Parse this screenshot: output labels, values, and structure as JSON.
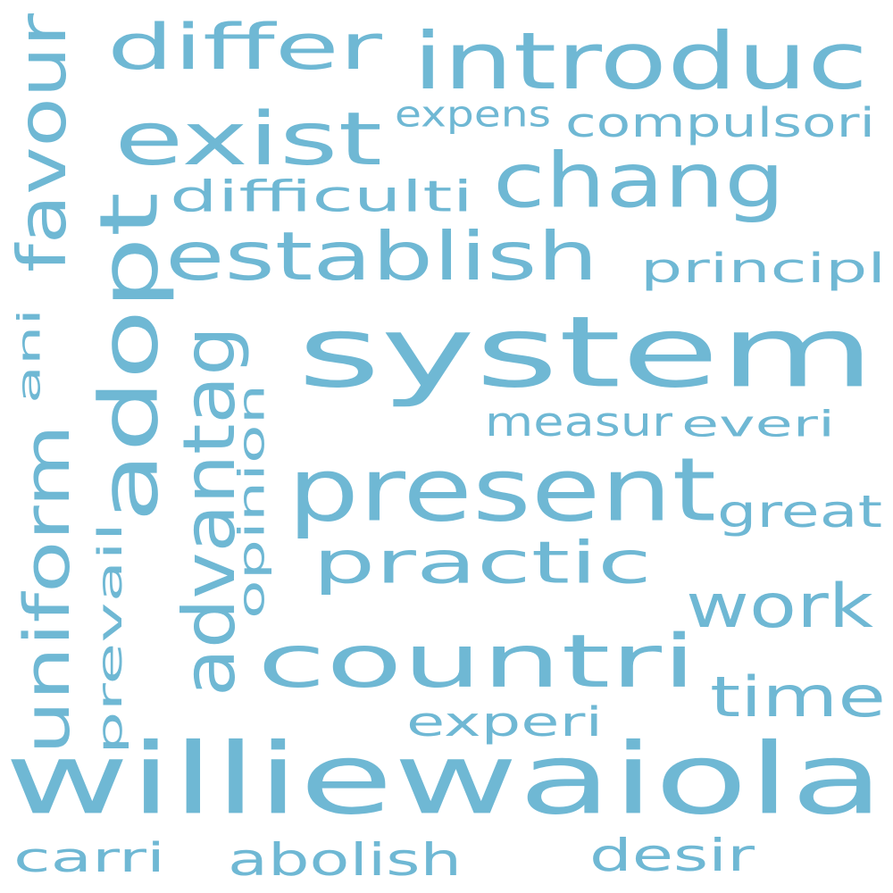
{
  "word_cloud": {
    "color": "#6fb8d4",
    "background": "#ffffff",
    "words": [
      {
        "text": "system",
        "orientation": "horizontal"
      },
      {
        "text": "williewaiola",
        "orientation": "horizontal"
      },
      {
        "text": "present",
        "orientation": "horizontal"
      },
      {
        "text": "countri",
        "orientation": "horizontal"
      },
      {
        "text": "introduc",
        "orientation": "horizontal"
      },
      {
        "text": "exist",
        "orientation": "horizontal"
      },
      {
        "text": "chang",
        "orientation": "horizontal"
      },
      {
        "text": "establish",
        "orientation": "horizontal"
      },
      {
        "text": "adopt",
        "orientation": "vertical"
      },
      {
        "text": "practic",
        "orientation": "horizontal"
      },
      {
        "text": "advantag",
        "orientation": "vertical"
      },
      {
        "text": "uniform",
        "orientation": "vertical"
      },
      {
        "text": "favour",
        "orientation": "vertical"
      },
      {
        "text": "differ",
        "orientation": "horizontal"
      },
      {
        "text": "work",
        "orientation": "horizontal"
      },
      {
        "text": "time",
        "orientation": "horizontal"
      },
      {
        "text": "compulsori",
        "orientation": "horizontal"
      },
      {
        "text": "principl",
        "orientation": "horizontal"
      },
      {
        "text": "great",
        "orientation": "horizontal"
      },
      {
        "text": "difficulti",
        "orientation": "horizontal"
      },
      {
        "text": "measur",
        "orientation": "horizontal"
      },
      {
        "text": "everi",
        "orientation": "horizontal"
      },
      {
        "text": "experi",
        "orientation": "horizontal"
      },
      {
        "text": "opinion",
        "orientation": "vertical"
      },
      {
        "text": "prevail",
        "orientation": "vertical"
      },
      {
        "text": "abolish",
        "orientation": "horizontal"
      },
      {
        "text": "desir",
        "orientation": "horizontal"
      },
      {
        "text": "carri",
        "orientation": "horizontal"
      },
      {
        "text": "expens",
        "orientation": "horizontal"
      },
      {
        "text": "ani",
        "orientation": "vertical"
      }
    ]
  }
}
